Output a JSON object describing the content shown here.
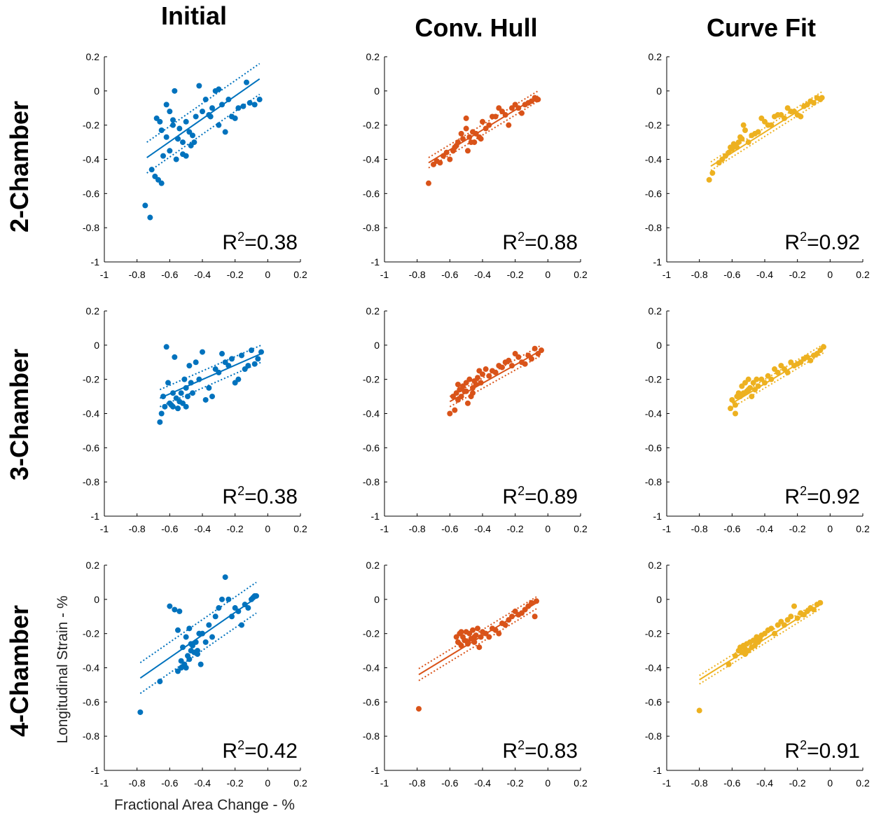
{
  "figure": {
    "column_titles": [
      "Initial",
      "Conv. Hull",
      "Curve Fit"
    ],
    "row_titles": [
      "2-Chamber",
      "3-Chamber",
      "4-Chamber"
    ],
    "xlabel": "Fractional Area Change - %",
    "ylabel": "Longitudinal Strain - %",
    "colors": [
      "#0072bd",
      "#d95319",
      "#edb120"
    ]
  },
  "chart_data": [
    {
      "type": "scatter",
      "row": "2-Chamber",
      "method": "Initial",
      "xlim": [
        -1,
        0.2
      ],
      "ylim": [
        -1,
        0.2
      ],
      "xticks": [
        "-1",
        "-0.8",
        "-0.6",
        "-0.4",
        "-0.2",
        "0",
        "0.2"
      ],
      "yticks": [
        "-1",
        "-0.8",
        "-0.6",
        "-0.4",
        "-0.2",
        "0",
        "0.2"
      ],
      "r2_prefix": "R",
      "r2_sup": "2",
      "r2_value": "=0.38",
      "fit": {
        "x": [
          -0.74,
          -0.05
        ],
        "y": [
          -0.39,
          0.07
        ]
      },
      "band": 0.09,
      "x": [
        -0.75,
        -0.72,
        -0.71,
        -0.69,
        -0.67,
        -0.65,
        -0.68,
        -0.66,
        -0.64,
        -0.62,
        -0.6,
        -0.58,
        -0.57,
        -0.55,
        -0.54,
        -0.52,
        -0.5,
        -0.48,
        -0.46,
        -0.44,
        -0.42,
        -0.4,
        -0.38,
        -0.36,
        -0.34,
        -0.32,
        -0.3,
        -0.28,
        -0.26,
        -0.24,
        -0.22,
        -0.2,
        -0.18,
        -0.15,
        -0.13,
        -0.11,
        -0.08,
        -0.05,
        -0.6,
        -0.56,
        -0.5,
        -0.45,
        -0.3,
        -0.55,
        -0.47,
        -0.62,
        -0.65,
        -0.58,
        -0.52,
        -0.35
      ],
      "y": [
        -0.67,
        -0.74,
        -0.46,
        -0.5,
        -0.52,
        -0.54,
        -0.16,
        -0.18,
        -0.38,
        -0.08,
        -0.12,
        -0.2,
        0.0,
        -0.28,
        -0.22,
        -0.3,
        -0.18,
        -0.24,
        -0.26,
        -0.15,
        0.03,
        -0.12,
        -0.05,
        -0.14,
        -0.1,
        0.0,
        0.01,
        -0.08,
        -0.24,
        -0.05,
        -0.15,
        -0.16,
        -0.1,
        -0.09,
        0.05,
        -0.07,
        -0.08,
        -0.05,
        -0.35,
        -0.4,
        -0.38,
        -0.3,
        -0.2,
        -0.28,
        -0.32,
        -0.27,
        -0.23,
        -0.17,
        -0.37,
        -0.15
      ]
    },
    {
      "type": "scatter",
      "row": "2-Chamber",
      "method": "Conv. Hull",
      "xlim": [
        -1,
        0.2
      ],
      "ylim": [
        -1,
        0.2
      ],
      "xticks": [
        "-1",
        "-0.8",
        "-0.6",
        "-0.4",
        "-0.2",
        "0",
        "0.2"
      ],
      "yticks": [
        "-1",
        "-0.8",
        "-0.6",
        "-0.4",
        "-0.2",
        "0",
        "0.2"
      ],
      "r2_prefix": "R",
      "r2_sup": "2",
      "r2_value": "=0.88",
      "fit": {
        "x": [
          -0.73,
          -0.06
        ],
        "y": [
          -0.42,
          -0.03
        ]
      },
      "band": 0.03,
      "x": [
        -0.73,
        -0.7,
        -0.68,
        -0.66,
        -0.64,
        -0.62,
        -0.6,
        -0.58,
        -0.56,
        -0.55,
        -0.53,
        -0.52,
        -0.5,
        -0.49,
        -0.48,
        -0.47,
        -0.46,
        -0.44,
        -0.42,
        -0.4,
        -0.38,
        -0.36,
        -0.34,
        -0.32,
        -0.3,
        -0.28,
        -0.26,
        -0.24,
        -0.22,
        -0.2,
        -0.18,
        -0.16,
        -0.14,
        -0.12,
        -0.1,
        -0.08,
        -0.07,
        -0.06,
        -0.57,
        -0.5,
        -0.45,
        -0.41
      ],
      "y": [
        -0.54,
        -0.43,
        -0.41,
        -0.42,
        -0.38,
        -0.36,
        -0.4,
        -0.35,
        -0.32,
        -0.3,
        -0.25,
        -0.28,
        -0.22,
        -0.35,
        -0.27,
        -0.3,
        -0.24,
        -0.25,
        -0.27,
        -0.18,
        -0.22,
        -0.2,
        -0.15,
        -0.15,
        -0.1,
        -0.12,
        -0.14,
        -0.2,
        -0.1,
        -0.08,
        -0.1,
        -0.13,
        -0.08,
        -0.07,
        -0.06,
        -0.04,
        -0.05,
        -0.05,
        -0.33,
        -0.16,
        -0.3,
        -0.28
      ]
    },
    {
      "type": "scatter",
      "row": "2-Chamber",
      "method": "Curve Fit",
      "xlim": [
        -1,
        0.2
      ],
      "ylim": [
        -1,
        0.2
      ],
      "xticks": [
        "-1",
        "-0.8",
        "-0.6",
        "-0.4",
        "-0.2",
        "0",
        "0.2"
      ],
      "yticks": [
        "-1",
        "-0.8",
        "-0.6",
        "-0.4",
        "-0.2",
        "0",
        "0.2"
      ],
      "r2_prefix": "R",
      "r2_sup": "2",
      "r2_value": "=0.92",
      "fit": {
        "x": [
          -0.73,
          -0.05
        ],
        "y": [
          -0.44,
          -0.03
        ]
      },
      "band": 0.025,
      "x": [
        -0.74,
        -0.72,
        -0.68,
        -0.66,
        -0.64,
        -0.62,
        -0.61,
        -0.6,
        -0.59,
        -0.58,
        -0.57,
        -0.56,
        -0.55,
        -0.54,
        -0.53,
        -0.52,
        -0.5,
        -0.48,
        -0.46,
        -0.44,
        -0.42,
        -0.4,
        -0.38,
        -0.36,
        -0.34,
        -0.32,
        -0.3,
        -0.28,
        -0.26,
        -0.24,
        -0.22,
        -0.2,
        -0.18,
        -0.16,
        -0.14,
        -0.12,
        -0.1,
        -0.08,
        -0.06,
        -0.05
      ],
      "y": [
        -0.52,
        -0.48,
        -0.42,
        -0.4,
        -0.38,
        -0.36,
        -0.33,
        -0.34,
        -0.31,
        -0.32,
        -0.33,
        -0.3,
        -0.27,
        -0.28,
        -0.2,
        -0.23,
        -0.3,
        -0.26,
        -0.25,
        -0.24,
        -0.16,
        -0.18,
        -0.2,
        -0.2,
        -0.15,
        -0.14,
        -0.14,
        -0.16,
        -0.1,
        -0.12,
        -0.12,
        -0.14,
        -0.15,
        -0.09,
        -0.08,
        -0.06,
        -0.07,
        -0.04,
        -0.05,
        -0.04
      ]
    },
    {
      "type": "scatter",
      "row": "3-Chamber",
      "method": "Initial",
      "xlim": [
        -1,
        0.2
      ],
      "ylim": [
        -1,
        0.2
      ],
      "xticks": [
        "-1",
        "-0.8",
        "-0.6",
        "-0.4",
        "-0.2",
        "0",
        "0.2"
      ],
      "yticks": [
        "-1",
        "-0.8",
        "-0.6",
        "-0.4",
        "-0.2",
        "0",
        "0.2"
      ],
      "r2_prefix": "R",
      "r2_sup": "2",
      "r2_value": "=0.38",
      "fit": {
        "x": [
          -0.66,
          -0.04
        ],
        "y": [
          -0.31,
          -0.05
        ]
      },
      "band": 0.05,
      "x": [
        -0.66,
        -0.65,
        -0.64,
        -0.62,
        -0.61,
        -0.6,
        -0.59,
        -0.58,
        -0.57,
        -0.56,
        -0.55,
        -0.54,
        -0.53,
        -0.52,
        -0.51,
        -0.5,
        -0.49,
        -0.48,
        -0.46,
        -0.44,
        -0.42,
        -0.4,
        -0.38,
        -0.36,
        -0.34,
        -0.32,
        -0.3,
        -0.28,
        -0.26,
        -0.24,
        -0.22,
        -0.2,
        -0.18,
        -0.16,
        -0.14,
        -0.12,
        -0.1,
        -0.08,
        -0.06,
        -0.04,
        -0.63,
        -0.58,
        -0.55,
        -0.5,
        -0.47
      ],
      "y": [
        -0.45,
        -0.4,
        -0.3,
        -0.01,
        -0.22,
        -0.34,
        -0.35,
        -0.36,
        -0.07,
        -0.31,
        -0.37,
        -0.33,
        -0.28,
        -0.34,
        -0.2,
        -0.36,
        -0.3,
        -0.12,
        -0.28,
        -0.1,
        -0.2,
        -0.04,
        -0.32,
        -0.25,
        -0.3,
        -0.14,
        -0.16,
        -0.05,
        -0.1,
        -0.12,
        -0.08,
        -0.22,
        -0.2,
        -0.06,
        -0.14,
        -0.12,
        -0.03,
        -0.11,
        -0.08,
        -0.04,
        -0.36,
        -0.28,
        -0.37,
        -0.25,
        -0.22
      ]
    },
    {
      "type": "scatter",
      "row": "3-Chamber",
      "method": "Conv. Hull",
      "xlim": [
        -1,
        0.2
      ],
      "ylim": [
        -1,
        0.2
      ],
      "xticks": [
        "-1",
        "-0.8",
        "-0.6",
        "-0.4",
        "-0.2",
        "0",
        "0.2"
      ],
      "yticks": [
        "-1",
        "-0.8",
        "-0.6",
        "-0.4",
        "-0.2",
        "0",
        "0.2"
      ],
      "r2_prefix": "R",
      "r2_sup": "2",
      "r2_value": "=0.89",
      "fit": {
        "x": [
          -0.6,
          -0.04
        ],
        "y": [
          -0.33,
          -0.03
        ]
      },
      "band": 0.03,
      "x": [
        -0.6,
        -0.58,
        -0.57,
        -0.56,
        -0.55,
        -0.54,
        -0.53,
        -0.52,
        -0.51,
        -0.5,
        -0.49,
        -0.48,
        -0.47,
        -0.46,
        -0.45,
        -0.44,
        -0.43,
        -0.42,
        -0.41,
        -0.4,
        -0.38,
        -0.36,
        -0.34,
        -0.32,
        -0.3,
        -0.28,
        -0.26,
        -0.24,
        -0.22,
        -0.2,
        -0.18,
        -0.16,
        -0.14,
        -0.12,
        -0.1,
        -0.08,
        -0.06,
        -0.04,
        -0.55,
        -0.5,
        -0.46
      ],
      "y": [
        -0.4,
        -0.3,
        -0.38,
        -0.28,
        -0.32,
        -0.26,
        -0.3,
        -0.24,
        -0.27,
        -0.22,
        -0.34,
        -0.2,
        -0.3,
        -0.25,
        -0.21,
        -0.23,
        -0.19,
        -0.15,
        -0.22,
        -0.17,
        -0.14,
        -0.18,
        -0.15,
        -0.16,
        -0.12,
        -0.13,
        -0.1,
        -0.09,
        -0.12,
        -0.05,
        -0.07,
        -0.1,
        -0.11,
        -0.06,
        -0.08,
        -0.02,
        -0.05,
        -0.03,
        -0.23,
        -0.27,
        -0.28
      ]
    },
    {
      "type": "scatter",
      "row": "3-Chamber",
      "method": "Curve Fit",
      "xlim": [
        -1,
        0.2
      ],
      "ylim": [
        -1,
        0.2
      ],
      "xticks": [
        "-1",
        "-0.8",
        "-0.6",
        "-0.4",
        "-0.2",
        "0",
        "0.2"
      ],
      "yticks": [
        "-1",
        "-0.8",
        "-0.6",
        "-0.4",
        "-0.2",
        "0",
        "0.2"
      ],
      "r2_prefix": "R",
      "r2_sup": "2",
      "r2_value": "=0.92",
      "fit": {
        "x": [
          -0.6,
          -0.04
        ],
        "y": [
          -0.34,
          -0.02
        ]
      },
      "band": 0.025,
      "x": [
        -0.61,
        -0.6,
        -0.58,
        -0.57,
        -0.56,
        -0.55,
        -0.54,
        -0.53,
        -0.52,
        -0.51,
        -0.5,
        -0.49,
        -0.48,
        -0.47,
        -0.46,
        -0.45,
        -0.44,
        -0.42,
        -0.4,
        -0.38,
        -0.36,
        -0.34,
        -0.32,
        -0.3,
        -0.28,
        -0.26,
        -0.24,
        -0.22,
        -0.2,
        -0.18,
        -0.16,
        -0.14,
        -0.12,
        -0.1,
        -0.08,
        -0.06,
        -0.04,
        -0.58,
        -0.54,
        -0.5
      ],
      "y": [
        -0.37,
        -0.32,
        -0.4,
        -0.3,
        -0.28,
        -0.3,
        -0.24,
        -0.28,
        -0.22,
        -0.27,
        -0.2,
        -0.25,
        -0.3,
        -0.22,
        -0.26,
        -0.2,
        -0.24,
        -0.2,
        -0.22,
        -0.18,
        -0.2,
        -0.14,
        -0.16,
        -0.12,
        -0.14,
        -0.16,
        -0.1,
        -0.12,
        -0.11,
        -0.1,
        -0.08,
        -0.07,
        -0.09,
        -0.06,
        -0.05,
        -0.03,
        -0.01,
        -0.35,
        -0.29,
        -0.26
      ]
    },
    {
      "type": "scatter",
      "row": "4-Chamber",
      "method": "Initial",
      "xlim": [
        -1,
        0.2
      ],
      "ylim": [
        -1,
        0.2
      ],
      "xticks": [
        "-1",
        "-0.8",
        "-0.6",
        "-0.4",
        "-0.2",
        "0",
        "0.2"
      ],
      "yticks": [
        "-1",
        "-0.8",
        "-0.6",
        "-0.4",
        "-0.2",
        "0",
        "0.2"
      ],
      "r2_prefix": "R",
      "r2_sup": "2",
      "r2_value": "=0.42",
      "fit": {
        "x": [
          -0.78,
          -0.07
        ],
        "y": [
          -0.46,
          0.01
        ]
      },
      "band": 0.09,
      "x": [
        -0.78,
        -0.66,
        -0.6,
        -0.57,
        -0.55,
        -0.54,
        -0.53,
        -0.52,
        -0.51,
        -0.5,
        -0.49,
        -0.48,
        -0.47,
        -0.46,
        -0.45,
        -0.44,
        -0.43,
        -0.42,
        -0.41,
        -0.4,
        -0.38,
        -0.36,
        -0.34,
        -0.32,
        -0.3,
        -0.28,
        -0.26,
        -0.24,
        -0.22,
        -0.2,
        -0.18,
        -0.16,
        -0.14,
        -0.12,
        -0.1,
        -0.09,
        -0.08,
        -0.07,
        -0.55,
        -0.5,
        -0.47,
        -0.43,
        -0.53,
        -0.48
      ],
      "y": [
        -0.66,
        -0.48,
        -0.04,
        -0.06,
        -0.42,
        -0.07,
        -0.4,
        -0.28,
        -0.38,
        -0.22,
        -0.33,
        -0.35,
        -0.3,
        -0.27,
        -0.31,
        -0.25,
        -0.32,
        -0.2,
        -0.38,
        -0.2,
        -0.25,
        -0.15,
        -0.22,
        -0.1,
        -0.05,
        0.0,
        0.13,
        0.0,
        -0.1,
        -0.05,
        -0.07,
        -0.15,
        -0.03,
        -0.05,
        0.0,
        0.01,
        0.02,
        0.02,
        -0.18,
        -0.4,
        -0.26,
        -0.3,
        -0.36,
        -0.17
      ]
    },
    {
      "type": "scatter",
      "row": "4-Chamber",
      "method": "Conv. Hull",
      "xlim": [
        -1,
        0.2
      ],
      "ylim": [
        -1,
        0.2
      ],
      "xticks": [
        "-1",
        "-0.8",
        "-0.6",
        "-0.4",
        "-0.2",
        "0",
        "0.2"
      ],
      "yticks": [
        "-1",
        "-0.8",
        "-0.6",
        "-0.4",
        "-0.2",
        "0",
        "0.2"
      ],
      "r2_prefix": "R",
      "r2_sup": "2",
      "r2_value": "=0.83",
      "fit": {
        "x": [
          -0.79,
          -0.07
        ],
        "y": [
          -0.44,
          -0.02
        ]
      },
      "band": 0.035,
      "x": [
        -0.79,
        -0.56,
        -0.55,
        -0.54,
        -0.53,
        -0.52,
        -0.51,
        -0.5,
        -0.49,
        -0.48,
        -0.47,
        -0.46,
        -0.45,
        -0.44,
        -0.43,
        -0.42,
        -0.41,
        -0.4,
        -0.38,
        -0.36,
        -0.34,
        -0.32,
        -0.3,
        -0.28,
        -0.26,
        -0.24,
        -0.22,
        -0.2,
        -0.18,
        -0.16,
        -0.14,
        -0.12,
        -0.1,
        -0.08,
        -0.07,
        -0.53,
        -0.49,
        -0.45
      ],
      "y": [
        -0.64,
        -0.22,
        -0.25,
        -0.2,
        -0.27,
        -0.22,
        -0.24,
        -0.19,
        -0.26,
        -0.2,
        -0.23,
        -0.18,
        -0.25,
        -0.21,
        -0.17,
        -0.28,
        -0.22,
        -0.19,
        -0.2,
        -0.22,
        -0.17,
        -0.18,
        -0.2,
        -0.14,
        -0.15,
        -0.12,
        -0.1,
        -0.07,
        -0.09,
        -0.08,
        -0.06,
        -0.04,
        -0.02,
        -0.1,
        -0.01,
        -0.19,
        -0.25,
        -0.22
      ]
    },
    {
      "type": "scatter",
      "row": "4-Chamber",
      "method": "Curve Fit",
      "xlim": [
        -1,
        0.2
      ],
      "ylim": [
        -1,
        0.2
      ],
      "xticks": [
        "-1",
        "-0.8",
        "-0.6",
        "-0.4",
        "-0.2",
        "0",
        "0.2"
      ],
      "yticks": [
        "-1",
        "-0.8",
        "-0.6",
        "-0.4",
        "-0.2",
        "0",
        "0.2"
      ],
      "r2_prefix": "R",
      "r2_sup": "2",
      "r2_value": "=0.91",
      "fit": {
        "x": [
          -0.8,
          -0.06
        ],
        "y": [
          -0.47,
          -0.03
        ]
      },
      "band": 0.025,
      "x": [
        -0.8,
        -0.62,
        -0.58,
        -0.56,
        -0.55,
        -0.54,
        -0.53,
        -0.52,
        -0.51,
        -0.5,
        -0.49,
        -0.48,
        -0.47,
        -0.46,
        -0.45,
        -0.44,
        -0.43,
        -0.42,
        -0.4,
        -0.38,
        -0.36,
        -0.34,
        -0.32,
        -0.3,
        -0.28,
        -0.26,
        -0.24,
        -0.22,
        -0.2,
        -0.18,
        -0.16,
        -0.14,
        -0.12,
        -0.1,
        -0.08,
        -0.06,
        -0.52,
        -0.48,
        -0.46
      ],
      "y": [
        -0.65,
        -0.38,
        -0.33,
        -0.3,
        -0.28,
        -0.31,
        -0.27,
        -0.29,
        -0.26,
        -0.3,
        -0.25,
        -0.28,
        -0.24,
        -0.27,
        -0.22,
        -0.25,
        -0.23,
        -0.21,
        -0.2,
        -0.18,
        -0.17,
        -0.2,
        -0.15,
        -0.13,
        -0.15,
        -0.12,
        -0.1,
        -0.04,
        -0.11,
        -0.08,
        -0.09,
        -0.07,
        -0.05,
        -0.06,
        -0.03,
        -0.02,
        -0.32,
        -0.28,
        -0.24
      ]
    }
  ]
}
